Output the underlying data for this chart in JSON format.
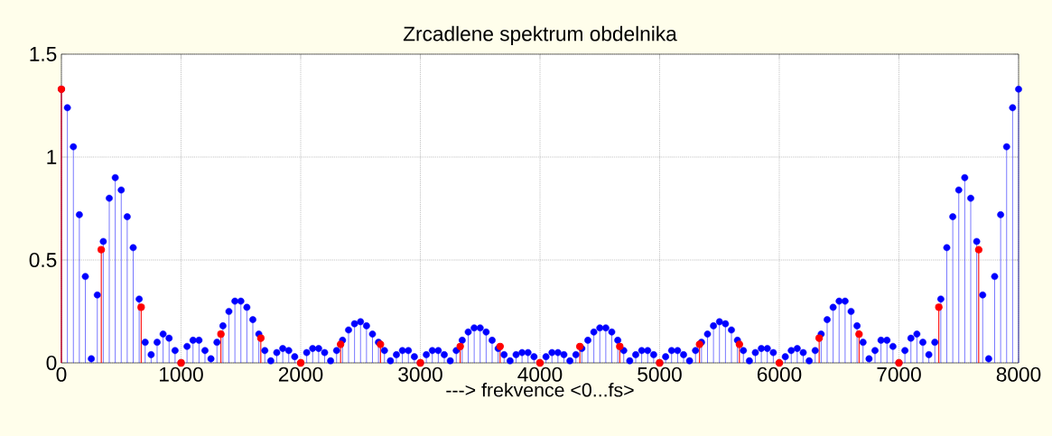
{
  "chart_data": {
    "type": "lollipop",
    "title": "Zrcadlene spektrum obdelnika",
    "xlabel": "---> frekvence <0...fs>",
    "xlim": [
      0,
      8000
    ],
    "xticks": [
      0,
      1000,
      2000,
      3000,
      4000,
      5000,
      6000,
      7000,
      8000
    ],
    "ylim": [
      0,
      1.5
    ],
    "yticks": [
      0,
      0.5,
      1,
      1.5
    ],
    "grid": true,
    "marker": "circle",
    "series": [
      {
        "color": "#0000ff",
        "x": [
          0,
          50,
          100,
          150,
          200,
          250,
          300,
          350,
          400,
          450,
          500,
          550,
          600,
          650,
          700,
          750,
          800,
          850,
          900,
          950,
          1000,
          1050,
          1100,
          1150,
          1200,
          1250,
          1300,
          1350,
          1400,
          1450,
          1500,
          1550,
          1600,
          1650,
          1700,
          1750,
          1800,
          1850,
          1900,
          1950,
          2000,
          2050,
          2100,
          2150,
          2200,
          2250,
          2300,
          2350,
          2400,
          2450,
          2500,
          2550,
          2600,
          2650,
          2700,
          2750,
          2800,
          2850,
          2900,
          2950,
          3000,
          3050,
          3100,
          3150,
          3200,
          3250,
          3300,
          3350,
          3400,
          3450,
          3500,
          3550,
          3600,
          3650,
          3700,
          3750,
          3800,
          3850,
          3900,
          3950,
          4000,
          4050,
          4100,
          4150,
          4200,
          4250,
          4300,
          4350,
          4400,
          4450,
          4500,
          4550,
          4600,
          4650,
          4700,
          4750,
          4800,
          4850,
          4900,
          4950,
          5000,
          5050,
          5100,
          5150,
          5200,
          5250,
          5300,
          5350,
          5400,
          5450,
          5500,
          5550,
          5600,
          5650,
          5700,
          5750,
          5800,
          5850,
          5900,
          5950,
          6000,
          6050,
          6100,
          6150,
          6200,
          6250,
          6300,
          6350,
          6400,
          6450,
          6500,
          6550,
          6600,
          6650,
          6700,
          6750,
          6800,
          6850,
          6900,
          6950,
          7000,
          7050,
          7100,
          7150,
          7200,
          7250,
          7300,
          7350,
          7400,
          7450,
          7500,
          7550,
          7600,
          7650,
          7700,
          7750,
          7800,
          7850,
          7900,
          7950,
          8000
        ],
        "values": [
          1.33,
          1.24,
          1.05,
          0.72,
          0.42,
          0.02,
          0.33,
          0.59,
          0.8,
          0.9,
          0.84,
          0.71,
          0.56,
          0.31,
          0.1,
          0.04,
          0.1,
          0.14,
          0.12,
          0.06,
          0,
          0.08,
          0.11,
          0.11,
          0.06,
          0.02,
          0.1,
          0.18,
          0.25,
          0.3,
          0.3,
          0.27,
          0.21,
          0.14,
          0.06,
          0.01,
          0.05,
          0.07,
          0.06,
          0.03,
          0,
          0.05,
          0.07,
          0.07,
          0.05,
          0.01,
          0.06,
          0.11,
          0.16,
          0.19,
          0.2,
          0.18,
          0.14,
          0.1,
          0.06,
          0.01,
          0.04,
          0.06,
          0.06,
          0.03,
          0,
          0.04,
          0.06,
          0.06,
          0.04,
          0.01,
          0.06,
          0.11,
          0.15,
          0.17,
          0.17,
          0.15,
          0.11,
          0.07,
          0.04,
          0.01,
          0.04,
          0.05,
          0.05,
          0.03,
          0,
          0.03,
          0.05,
          0.05,
          0.04,
          0.01,
          0.04,
          0.07,
          0.11,
          0.15,
          0.17,
          0.17,
          0.15,
          0.11,
          0.06,
          0.01,
          0.04,
          0.06,
          0.06,
          0.04,
          0,
          0.03,
          0.06,
          0.06,
          0.04,
          0.01,
          0.06,
          0.1,
          0.14,
          0.18,
          0.2,
          0.19,
          0.16,
          0.11,
          0.06,
          0.01,
          0.05,
          0.07,
          0.07,
          0.05,
          0,
          0.03,
          0.06,
          0.07,
          0.05,
          0.01,
          0.06,
          0.14,
          0.21,
          0.27,
          0.3,
          0.3,
          0.25,
          0.18,
          0.1,
          0.02,
          0.06,
          0.11,
          0.11,
          0.08,
          0,
          0.06,
          0.12,
          0.14,
          0.1,
          0.04,
          0.1,
          0.31,
          0.56,
          0.71,
          0.84,
          0.9,
          0.8,
          0.59,
          0.33,
          0.02,
          0.42,
          0.72,
          1.05,
          1.24,
          1.33
        ]
      },
      {
        "color": "#ff0000",
        "x": [
          0,
          333.3,
          666.7,
          1000,
          1333.3,
          1666.7,
          2000,
          2333.3,
          2666.7,
          3000,
          3333.3,
          3666.7,
          4000,
          4333.3,
          4666.7,
          5000,
          5333.3,
          5666.7,
          6000,
          6333.3,
          6666.7,
          7000,
          7333.3,
          7666.7
        ],
        "values": [
          1.33,
          0.55,
          0.27,
          0,
          0.14,
          0.12,
          0,
          0.09,
          0.09,
          0,
          0.08,
          0.08,
          0,
          0.08,
          0.08,
          0,
          0.09,
          0.09,
          0,
          0.12,
          0.14,
          0,
          0.27,
          0.55
        ]
      }
    ]
  }
}
